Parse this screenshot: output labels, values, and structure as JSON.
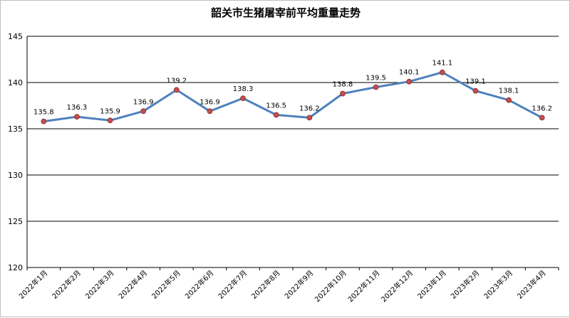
{
  "chart_data": {
    "type": "line",
    "title": "韶关市生猪屠宰前平均重量走势",
    "xlabel": "",
    "ylabel": "",
    "ylim": [
      120,
      145
    ],
    "yticks": [
      120,
      125,
      130,
      135,
      140,
      145
    ],
    "grid": true,
    "categories": [
      "2022年1月",
      "2022年2月",
      "2022年3月",
      "2022年4月",
      "2022年5月",
      "2022年6月",
      "2022年7月",
      "2022年8月",
      "2022年9月",
      "2022年10月",
      "2022年11月",
      "2022年12月",
      "2023年1月",
      "2023年2月",
      "2023年3月",
      "2023年4月"
    ],
    "series": [
      {
        "values": [
          135.8,
          136.3,
          135.9,
          136.9,
          139.2,
          136.9,
          138.3,
          136.5,
          136.2,
          138.8,
          139.5,
          140.1,
          141.1,
          139.1,
          138.1,
          136.2
        ]
      }
    ],
    "colors": {
      "line": "#4f81bd",
      "marker": "#c0504d",
      "grid": "#000000"
    }
  }
}
